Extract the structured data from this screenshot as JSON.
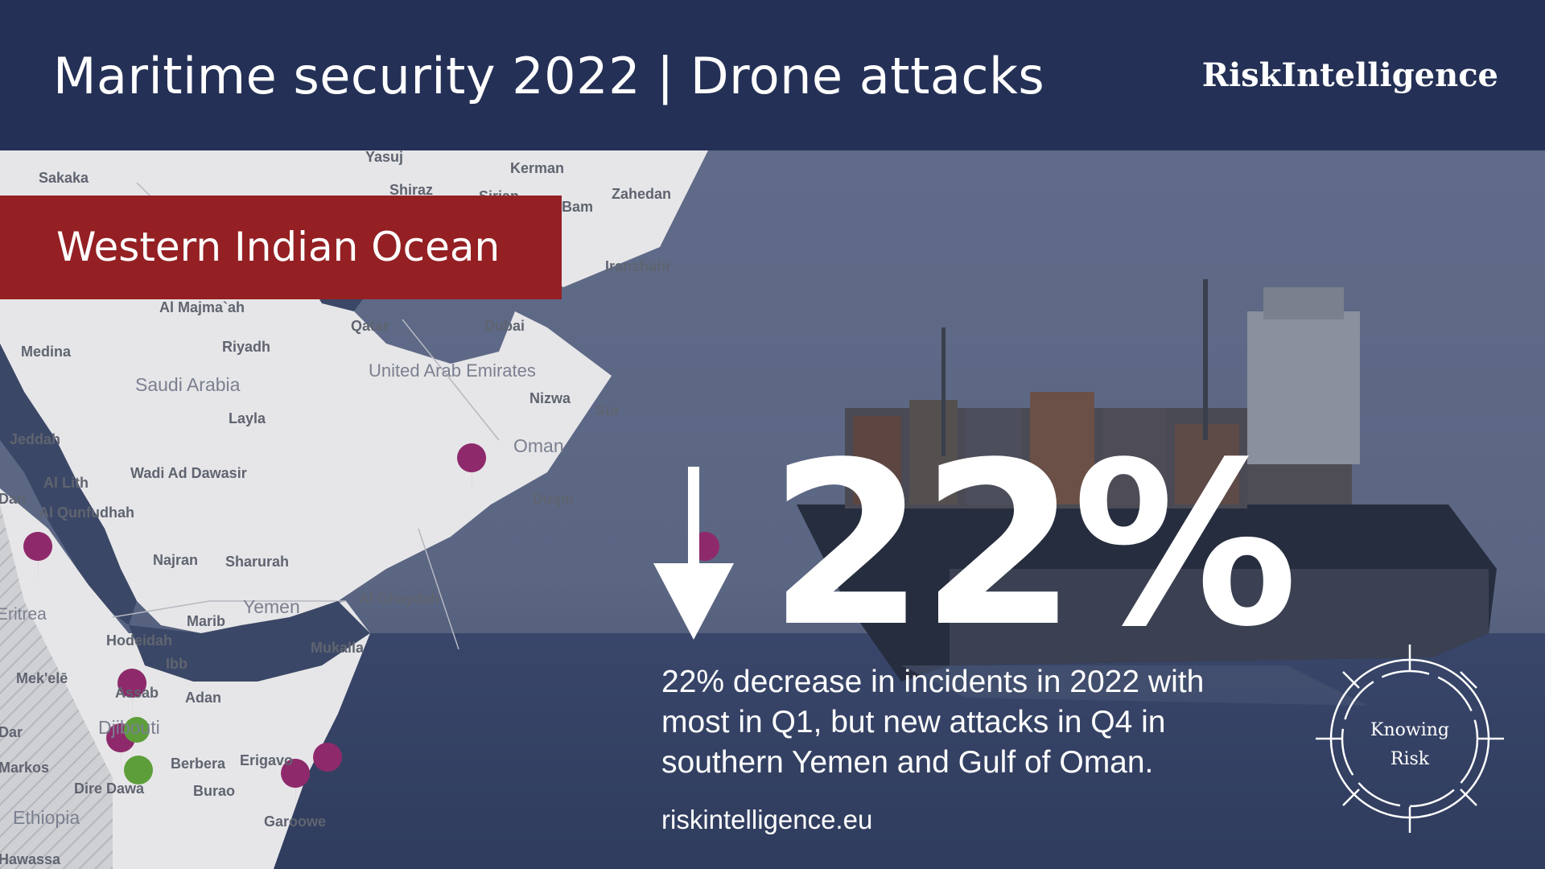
{
  "header": {
    "title": "Maritime security 2022 | Drone attacks",
    "brand": "RiskIntelligence"
  },
  "region": "Western Indian Ocean",
  "stat": {
    "value": "22%",
    "direction": "down",
    "description": "22% decrease in incidents in 2022 with most in Q1, but new attacks in Q4 in southern Yemen and Gulf of Oman."
  },
  "url": "riskintelligence.eu",
  "logo": {
    "line1": "Knowing",
    "line2": "Risk"
  },
  "map": {
    "cities": [
      "Sakaka",
      "Yasuj",
      "Kerman",
      "Shiraz",
      "Sirjan",
      "Bam",
      "Zahedan",
      "Iranshahr",
      "Al Majma`ah",
      "Qatar",
      "Dubai",
      "Medina",
      "Riyadh",
      "United Arab Emirates",
      "Nizwa",
      "Sur",
      "Layla",
      "Jeddah",
      "Wadi Ad Dawasir",
      "Al Lith",
      "Al Qunfudhah",
      "Duqm",
      "Najran",
      "Sharurah",
      "Al Ghaydah",
      "Eritrea",
      "Marib",
      "Hodeidah",
      "Ibb",
      "Mukalla",
      "Mek'elē",
      "Assab",
      "Adan",
      "Djibouti",
      "Dar",
      "Markos",
      "Berbera",
      "Erigavo",
      "Dire Dawa",
      "Burao",
      "Garoowe",
      "Hawassa",
      "Dan"
    ],
    "countries": [
      "Saudi Arabia",
      "Oman",
      "Yemen",
      "Ethiopia"
    ]
  },
  "icons": {
    "attack": "rifle-marker-icon",
    "other": "anchor-marker-icon"
  },
  "colors": {
    "header": "#243055",
    "band": "#942024",
    "marker": "#8e2a6b",
    "marker_green": "#5d9e3a"
  }
}
